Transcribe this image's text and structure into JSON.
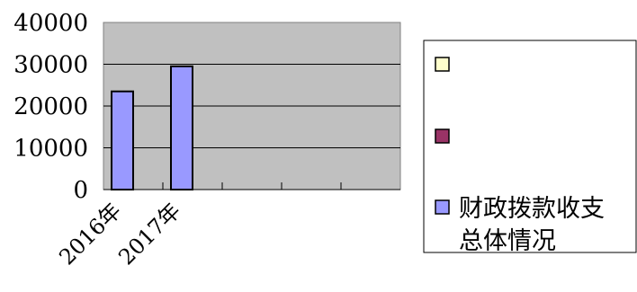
{
  "chart_data": {
    "type": "bar",
    "categories": [
      "2016年",
      "2017年",
      "",
      "",
      ""
    ],
    "series": [
      {
        "name": "",
        "values": [
          null,
          null,
          null,
          null,
          null
        ],
        "color": "#FFFFCC"
      },
      {
        "name": "",
        "values": [
          null,
          null,
          null,
          null,
          null
        ],
        "color": "#993366"
      },
      {
        "name": "财政拨款收支总体情况",
        "name_lines": [
          "财政拨款收支",
          "总体情况"
        ],
        "values": [
          23500,
          29500,
          null,
          null,
          null
        ],
        "color": "#9999FF"
      }
    ],
    "ylim": [
      0,
      40000
    ],
    "yticks": [
      "0",
      "10000",
      "20000",
      "30000",
      "40000"
    ],
    "grid": true,
    "legend_position": "right",
    "plot_background": "#C0C0C0"
  }
}
